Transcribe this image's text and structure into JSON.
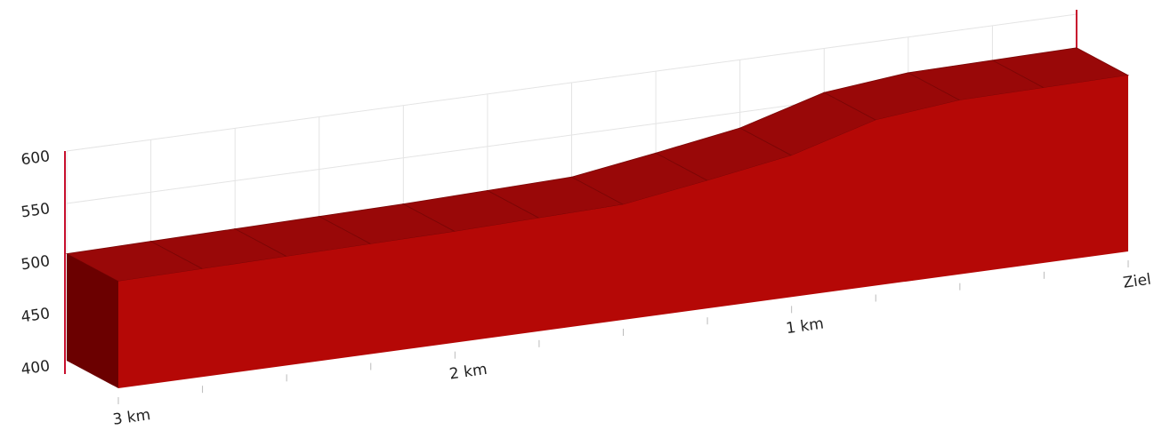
{
  "chart_data": {
    "type": "area3d",
    "x": [
      3,
      2.75,
      2.5,
      2.25,
      2,
      1.75,
      1.5,
      1.25,
      1,
      0.75,
      0.5,
      0.25,
      0
    ],
    "values": [
      502,
      503,
      504,
      505,
      506,
      508,
      510,
      522,
      535,
      558,
      566,
      567,
      568
    ],
    "color": "#b50806",
    "xlim": [
      3,
      0
    ],
    "xticks": [
      {
        "value": 3,
        "label": "3 km"
      },
      {
        "value": 2,
        "label": "2 km"
      },
      {
        "value": 1,
        "label": "1 km"
      },
      {
        "value": 0,
        "label": "Ziel"
      }
    ],
    "xticks_minor": [
      2.75,
      2.5,
      2.25,
      1.75,
      1.5,
      1.25,
      0.75,
      0.5,
      0.25
    ],
    "ylim": [
      400,
      600
    ],
    "yticks": [
      400,
      450,
      500,
      550,
      600
    ],
    "grid": true
  }
}
